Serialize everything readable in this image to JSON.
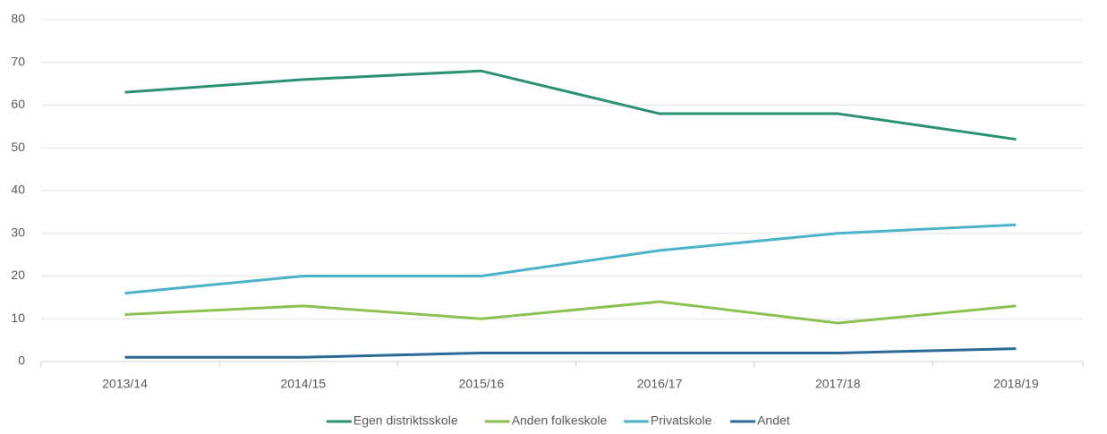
{
  "chart_data": {
    "type": "line",
    "categories": [
      "2013/14",
      "2014/15",
      "2015/16",
      "2016/17",
      "2017/18",
      "2018/19"
    ],
    "series": [
      {
        "name": "Egen distriktsskole",
        "color": "#2a9175",
        "values": [
          63,
          66,
          68,
          58,
          58,
          52
        ]
      },
      {
        "name": "Anden folkeskole",
        "color": "#8cc152",
        "values": [
          11,
          13,
          10,
          14,
          9,
          13
        ]
      },
      {
        "name": "Privatskole",
        "color": "#4ab3c8",
        "values": [
          16,
          20,
          20,
          26,
          30,
          32
        ]
      },
      {
        "name": "Andet",
        "color": "#2b6a97",
        "values": [
          1,
          1,
          2,
          2,
          2,
          3
        ]
      }
    ],
    "ylim": [
      0,
      80
    ],
    "yticks": [
      0,
      10,
      20,
      30,
      40,
      50,
      60,
      70,
      80
    ],
    "grid": true,
    "legend": "bottom"
  }
}
